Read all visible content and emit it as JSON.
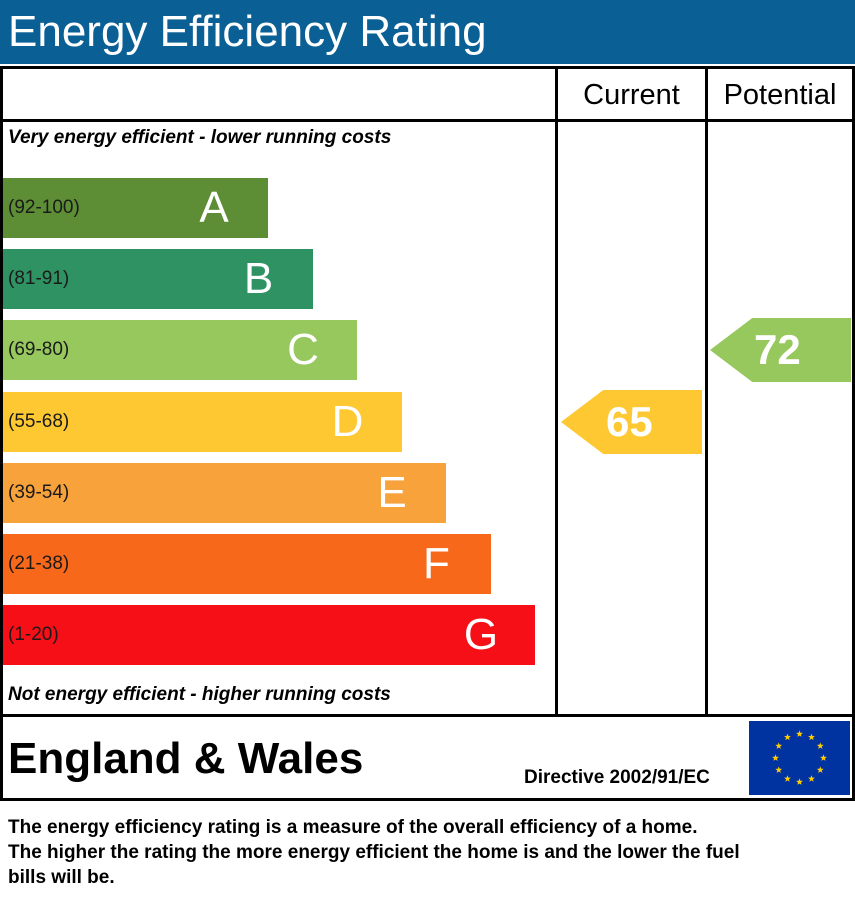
{
  "header": {
    "title": "Energy Efficiency Rating"
  },
  "columns": {
    "current": "Current",
    "potential": "Potential"
  },
  "notes": {
    "top": "Very energy efficient - lower running costs",
    "bottom": "Not energy efficient - higher running costs"
  },
  "chart_data": {
    "type": "bar",
    "categories": [
      "A",
      "B",
      "C",
      "D",
      "E",
      "F",
      "G"
    ],
    "ranges": [
      "(92-100)",
      "(81-91)",
      "(69-80)",
      "(55-68)",
      "(39-54)",
      "(21-38)",
      "(1-20)"
    ],
    "range_bounds": [
      [
        92,
        100
      ],
      [
        81,
        91
      ],
      [
        69,
        80
      ],
      [
        55,
        68
      ],
      [
        39,
        54
      ],
      [
        21,
        38
      ],
      [
        1,
        20
      ]
    ],
    "colors": [
      "#5d8e36",
      "#2f9263",
      "#96c85e",
      "#fdc832",
      "#f7a23b",
      "#f7681b",
      "#f70f18"
    ],
    "current": {
      "value": 65,
      "band": "D",
      "color": "#fdc832"
    },
    "potential": {
      "value": 72,
      "band": "C",
      "color": "#96c85e"
    }
  },
  "footer": {
    "region": "England & Wales",
    "directive": "Directive 2002/91/EC",
    "flag_icon": "eu-flag-icon",
    "description_lines": [
      "The energy efficiency rating is a measure of the overall efficiency of a home.",
      "The higher the rating the more energy efficient the home is and the lower the fuel",
      "bills will be."
    ]
  }
}
